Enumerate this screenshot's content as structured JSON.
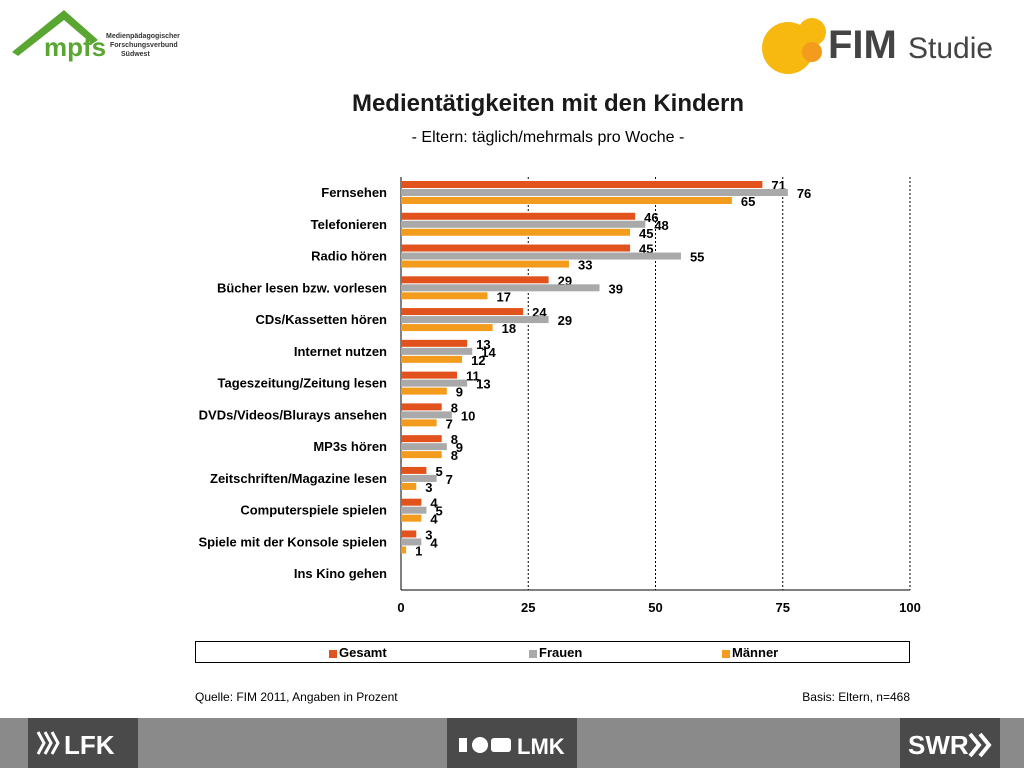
{
  "header": {
    "mpfs_logo_text": "mpfs",
    "mpfs_logo_lines": [
      "Medienpädagogischer",
      "Forschungsverbund",
      "Südwest"
    ],
    "fim_logo_text": "FIM",
    "fim_logo_suffix": "Studie"
  },
  "title": "Medientätigkeiten mit den Kindern",
  "subtitle": "- Eltern: täglich/mehrmals pro Woche -",
  "colors": {
    "gesamt": "#e2521d",
    "frauen": "#a9a9a9",
    "maenner": "#f29b1d"
  },
  "chart_data": {
    "type": "bar",
    "orientation": "horizontal",
    "categories": [
      "Fernsehen",
      "Telefonieren",
      "Radio hören",
      "Bücher lesen bzw. vorlesen",
      "CDs/Kassetten  hören",
      "Internet nutzen",
      "Tageszeitung/Zeitung  lesen",
      "DVDs/Videos/Blurays  ansehen",
      "MP3s hören",
      "Zeitschriften/Magazine  lesen",
      "Computerspiele  spielen",
      "Spiele mit der Konsole spielen",
      "Ins Kino gehen"
    ],
    "series": [
      {
        "name": "Gesamt",
        "values": [
          71,
          46,
          45,
          29,
          24,
          13,
          11,
          8,
          8,
          5,
          4,
          3,
          null
        ]
      },
      {
        "name": "Frauen",
        "values": [
          76,
          48,
          55,
          39,
          29,
          14,
          13,
          10,
          9,
          7,
          5,
          4,
          null
        ]
      },
      {
        "name": "Männer",
        "values": [
          65,
          45,
          33,
          17,
          18,
          12,
          9,
          7,
          8,
          3,
          4,
          1,
          null
        ]
      }
    ],
    "xlim": [
      0,
      100
    ],
    "xticks": [
      0,
      25,
      50,
      75,
      100
    ],
    "grid": "vertical dotted",
    "legend": "bottom"
  },
  "legend": [
    "Gesamt",
    "Frauen",
    "Männer"
  ],
  "source": "Quelle: FIM 2011, Angaben in Prozent",
  "basis": "Basis: Eltern, n=468",
  "footer": {
    "lfk": "LFK",
    "lmk": "LMK",
    "swr": "SWR"
  }
}
